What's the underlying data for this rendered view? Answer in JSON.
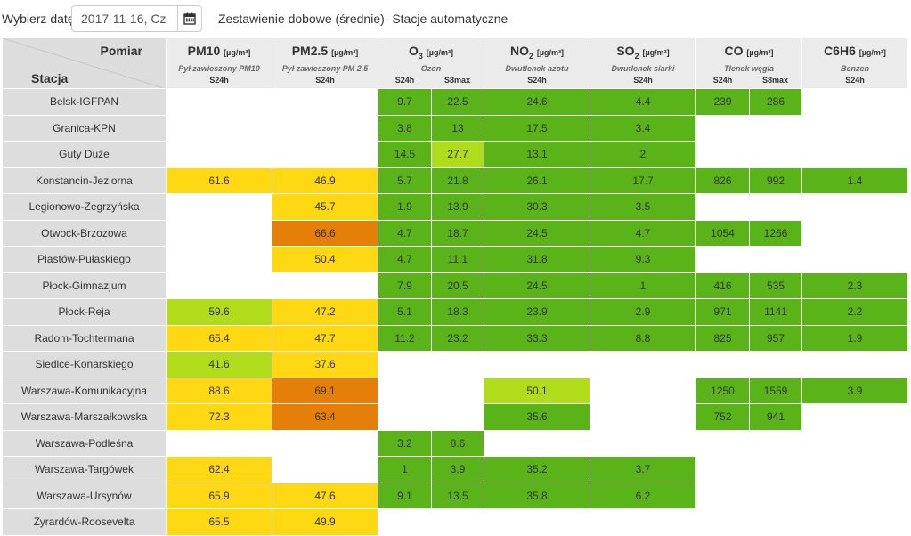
{
  "toolbar": {
    "date_label": "Wybierz datę:",
    "date_value": "2017-11-16, Cz",
    "calendar_icon": "calendar-icon",
    "title": "Zestawienie dobowe (średnie)- Stacje automatyczne"
  },
  "table": {
    "corner_measure": "Pomiar",
    "corner_station": "Stacja",
    "unit": "[µg/m³]",
    "columns": [
      {
        "name": "PM10",
        "sub": "",
        "desc": "Pył zawieszony PM10",
        "kinds": [
          "S24h"
        ]
      },
      {
        "name": "PM2.5",
        "sub": "",
        "desc": "Pył zawieszony PM 2.5",
        "kinds": [
          "S24h"
        ]
      },
      {
        "name": "O",
        "sub": "3",
        "desc": "Ozon",
        "kinds": [
          "S24h",
          "S8max"
        ]
      },
      {
        "name": "NO",
        "sub": "2",
        "desc": "Dwutlenek azotu",
        "kinds": [
          "S24h"
        ]
      },
      {
        "name": "SO",
        "sub": "2",
        "desc": "Dwutlenek siarki",
        "kinds": [
          "S24h"
        ]
      },
      {
        "name": "CO",
        "sub": "",
        "desc": "Tlenek węgla",
        "kinds": [
          "S24h",
          "S8max"
        ]
      },
      {
        "name": "C6H6",
        "sub": "",
        "desc": "Benzen",
        "kinds": [
          "S24h"
        ]
      }
    ],
    "legend_colors": {
      "g": "#5bb31a",
      "lg": "#b0dc1c",
      "y": "#ffd814",
      "o": "#e57f08",
      "w": "#ffffff"
    },
    "rows": [
      {
        "station": "Belsk-IGFPAN",
        "cells": [
          [
            "",
            ""
          ],
          [
            "",
            ""
          ],
          [
            "9.7",
            "g"
          ],
          [
            "22.5",
            "g"
          ],
          [
            "24.6",
            "g"
          ],
          [
            "4.4",
            "g"
          ],
          [
            "239",
            "g"
          ],
          [
            "286",
            "g"
          ],
          [
            "",
            ""
          ]
        ]
      },
      {
        "station": "Granica-KPN",
        "cells": [
          [
            "",
            ""
          ],
          [
            "",
            ""
          ],
          [
            "3.8",
            "g"
          ],
          [
            "13",
            "g"
          ],
          [
            "17.5",
            "g"
          ],
          [
            "3.4",
            "g"
          ],
          [
            "",
            ""
          ],
          [
            "",
            ""
          ],
          [
            "",
            ""
          ]
        ]
      },
      {
        "station": "Guty Duże",
        "cells": [
          [
            "",
            ""
          ],
          [
            "",
            ""
          ],
          [
            "14.5",
            "g"
          ],
          [
            "27.7",
            "lg"
          ],
          [
            "13.1",
            "g"
          ],
          [
            "2",
            "g"
          ],
          [
            "",
            ""
          ],
          [
            "",
            ""
          ],
          [
            "",
            ""
          ]
        ]
      },
      {
        "station": "Konstancin-Jeziorna",
        "cells": [
          [
            "61.6",
            "y"
          ],
          [
            "46.9",
            "y"
          ],
          [
            "5.7",
            "g"
          ],
          [
            "21.8",
            "g"
          ],
          [
            "26.1",
            "g"
          ],
          [
            "17.7",
            "g"
          ],
          [
            "826",
            "g"
          ],
          [
            "992",
            "g"
          ],
          [
            "1.4",
            "g"
          ]
        ]
      },
      {
        "station": "Legionowo-Zegrzyńska",
        "cells": [
          [
            "",
            ""
          ],
          [
            "45.7",
            "y"
          ],
          [
            "1.9",
            "g"
          ],
          [
            "13.9",
            "g"
          ],
          [
            "30.3",
            "g"
          ],
          [
            "3.5",
            "g"
          ],
          [
            "",
            ""
          ],
          [
            "",
            ""
          ],
          [
            "",
            ""
          ]
        ]
      },
      {
        "station": "Otwock-Brzozowa",
        "cells": [
          [
            "",
            ""
          ],
          [
            "66.6",
            "o"
          ],
          [
            "4.7",
            "g"
          ],
          [
            "18.7",
            "g"
          ],
          [
            "24.5",
            "g"
          ],
          [
            "4.7",
            "g"
          ],
          [
            "1054",
            "g"
          ],
          [
            "1266",
            "g"
          ],
          [
            "",
            ""
          ]
        ]
      },
      {
        "station": "Piastów-Pułaskiego",
        "cells": [
          [
            "",
            ""
          ],
          [
            "50.4",
            "y"
          ],
          [
            "4.7",
            "g"
          ],
          [
            "11.1",
            "g"
          ],
          [
            "31.8",
            "g"
          ],
          [
            "9.3",
            "g"
          ],
          [
            "",
            ""
          ],
          [
            "",
            ""
          ],
          [
            "",
            ""
          ]
        ]
      },
      {
        "station": "Płock-Gimnazjum",
        "cells": [
          [
            "",
            ""
          ],
          [
            "",
            ""
          ],
          [
            "7.9",
            "g"
          ],
          [
            "20.5",
            "g"
          ],
          [
            "24.5",
            "g"
          ],
          [
            "1",
            "g"
          ],
          [
            "416",
            "g"
          ],
          [
            "535",
            "g"
          ],
          [
            "2.3",
            "g"
          ]
        ]
      },
      {
        "station": "Płock-Reja",
        "cells": [
          [
            "59.6",
            "lg"
          ],
          [
            "47.2",
            "y"
          ],
          [
            "5.1",
            "g"
          ],
          [
            "18.3",
            "g"
          ],
          [
            "23.9",
            "g"
          ],
          [
            "2.9",
            "g"
          ],
          [
            "971",
            "g"
          ],
          [
            "1141",
            "g"
          ],
          [
            "2.2",
            "g"
          ]
        ]
      },
      {
        "station": "Radom-Tochtermana",
        "cells": [
          [
            "65.4",
            "y"
          ],
          [
            "47.7",
            "y"
          ],
          [
            "11.2",
            "g"
          ],
          [
            "23.2",
            "g"
          ],
          [
            "33.3",
            "g"
          ],
          [
            "8.8",
            "g"
          ],
          [
            "825",
            "g"
          ],
          [
            "957",
            "g"
          ],
          [
            "1.9",
            "g"
          ]
        ]
      },
      {
        "station": "Siedlce-Konarskiego",
        "cells": [
          [
            "41.6",
            "lg"
          ],
          [
            "37.6",
            "y"
          ],
          [
            "",
            ""
          ],
          [
            "",
            ""
          ],
          [
            "",
            ""
          ],
          [
            "",
            ""
          ],
          [
            "",
            ""
          ],
          [
            "",
            ""
          ],
          [
            "",
            ""
          ]
        ]
      },
      {
        "station": "Warszawa-Komunikacyjna",
        "cells": [
          [
            "88.6",
            "y"
          ],
          [
            "69.1",
            "o"
          ],
          [
            "",
            ""
          ],
          [
            "",
            ""
          ],
          [
            "50.1",
            "lg"
          ],
          [
            "",
            ""
          ],
          [
            "1250",
            "g"
          ],
          [
            "1559",
            "g"
          ],
          [
            "3.9",
            "g"
          ]
        ]
      },
      {
        "station": "Warszawa-Marszałkowska",
        "cells": [
          [
            "72.3",
            "y"
          ],
          [
            "63.4",
            "o"
          ],
          [
            "",
            ""
          ],
          [
            "",
            ""
          ],
          [
            "35.6",
            "g"
          ],
          [
            "",
            ""
          ],
          [
            "752",
            "g"
          ],
          [
            "941",
            "g"
          ],
          [
            "",
            ""
          ]
        ]
      },
      {
        "station": "Warszawa-Podleśna",
        "cells": [
          [
            "",
            ""
          ],
          [
            "",
            ""
          ],
          [
            "3.2",
            "g"
          ],
          [
            "8.6",
            "g"
          ],
          [
            "",
            ""
          ],
          [
            "",
            ""
          ],
          [
            "",
            ""
          ],
          [
            "",
            ""
          ],
          [
            "",
            ""
          ]
        ]
      },
      {
        "station": "Warszawa-Targówek",
        "cells": [
          [
            "62.4",
            "y"
          ],
          [
            "",
            ""
          ],
          [
            "1",
            "g"
          ],
          [
            "3.9",
            "g"
          ],
          [
            "35.2",
            "g"
          ],
          [
            "3.7",
            "g"
          ],
          [
            "",
            ""
          ],
          [
            "",
            ""
          ],
          [
            "",
            ""
          ]
        ]
      },
      {
        "station": "Warszawa-Ursynów",
        "cells": [
          [
            "65.9",
            "y"
          ],
          [
            "47.6",
            "y"
          ],
          [
            "9.1",
            "g"
          ],
          [
            "13.5",
            "g"
          ],
          [
            "35.8",
            "g"
          ],
          [
            "6.2",
            "g"
          ],
          [
            "",
            ""
          ],
          [
            "",
            ""
          ],
          [
            "",
            ""
          ]
        ]
      },
      {
        "station": "Żyrardów-Roosevelta",
        "cells": [
          [
            "65.5",
            "y"
          ],
          [
            "49.9",
            "y"
          ],
          [
            "",
            ""
          ],
          [
            "",
            ""
          ],
          [
            "",
            ""
          ],
          [
            "",
            ""
          ],
          [
            "",
            ""
          ],
          [
            "",
            ""
          ],
          [
            "",
            ""
          ]
        ]
      }
    ]
  }
}
